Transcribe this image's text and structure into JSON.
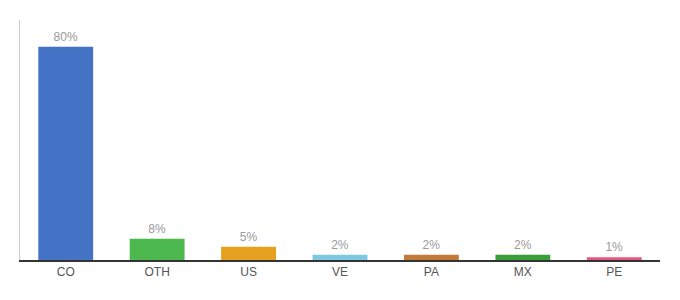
{
  "chart_data": {
    "type": "bar",
    "categories": [
      "CO",
      "OTH",
      "US",
      "VE",
      "PA",
      "MX",
      "PE"
    ],
    "values": [
      80,
      8,
      5,
      2,
      2,
      2,
      1
    ],
    "value_labels": [
      "80%",
      "8%",
      "5%",
      "2%",
      "2%",
      "2%",
      "1%"
    ],
    "data_labels": true,
    "colors": [
      "#4472c4",
      "#4db84d",
      "#e6a020",
      "#7ec8e3",
      "#c17a3a",
      "#3a9e3a",
      "#e75480"
    ],
    "ylim": [
      0,
      90
    ],
    "tick_labels": "x",
    "grid": false
  }
}
